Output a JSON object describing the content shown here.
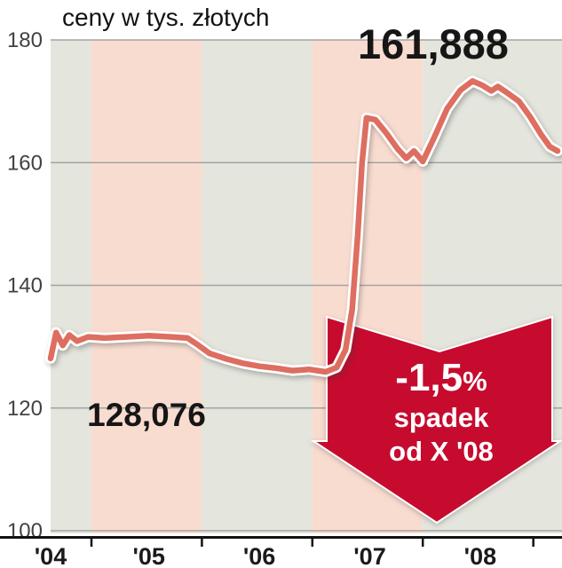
{
  "colors": {
    "line": "#dd6e60",
    "line_casing": "#ffffff",
    "band_gray": "#e4e5dd",
    "band_pink": "#f9dcd0",
    "grid": "#a3a3a3",
    "axis": "#111111",
    "y_tick_label": "#424242",
    "x_tick_label": "#1a1a1a",
    "arrow": "#c60b2e",
    "annotation_text": "#161616"
  },
  "chart_data": {
    "type": "line",
    "title": "ceny w tys. złotych",
    "xlabel": "",
    "ylabel": "ceny w tys. złotych",
    "ylim": [
      100,
      180
    ],
    "yticks": [
      180,
      160,
      140,
      120,
      100
    ],
    "x_domain": [
      2004.11,
      2008.74
    ],
    "xticks": [
      {
        "x": 2004.11,
        "label": "'04"
      },
      {
        "x": 2005,
        "label": "'05"
      },
      {
        "x": 2006,
        "label": "'06"
      },
      {
        "x": 2007,
        "label": "'07"
      },
      {
        "x": 2008,
        "label": "'08"
      }
    ],
    "xtick_marks": [
      2004.48,
      2005.48,
      2006.48,
      2007.48,
      2008.48
    ],
    "bands": [
      {
        "from": 2004.11,
        "to": 2004.48,
        "color": "gray"
      },
      {
        "from": 2004.48,
        "to": 2005.48,
        "color": "pink"
      },
      {
        "from": 2005.48,
        "to": 2006.48,
        "color": "gray"
      },
      {
        "from": 2006.48,
        "to": 2007.48,
        "color": "pink"
      },
      {
        "from": 2007.48,
        "to": 2008.74,
        "color": "gray"
      }
    ],
    "grid": true,
    "legend": false,
    "series": [
      {
        "points": [
          [
            2004.11,
            128.1
          ],
          [
            2004.16,
            132.3
          ],
          [
            2004.22,
            130.2
          ],
          [
            2004.28,
            131.9
          ],
          [
            2004.35,
            130.9
          ],
          [
            2004.45,
            131.6
          ],
          [
            2004.6,
            131.4
          ],
          [
            2004.8,
            131.6
          ],
          [
            2005.0,
            131.8
          ],
          [
            2005.2,
            131.6
          ],
          [
            2005.35,
            131.4
          ],
          [
            2005.45,
            130.2
          ],
          [
            2005.55,
            128.9
          ],
          [
            2005.7,
            128.0
          ],
          [
            2005.85,
            127.3
          ],
          [
            2006.0,
            126.8
          ],
          [
            2006.15,
            126.5
          ],
          [
            2006.3,
            126.1
          ],
          [
            2006.45,
            126.3
          ],
          [
            2006.6,
            125.9
          ],
          [
            2006.7,
            126.6
          ],
          [
            2006.78,
            129.5
          ],
          [
            2006.84,
            136.0
          ],
          [
            2006.89,
            148.0
          ],
          [
            2006.93,
            160.0
          ],
          [
            2006.97,
            167.3
          ],
          [
            2007.05,
            167.0
          ],
          [
            2007.15,
            164.8
          ],
          [
            2007.25,
            162.3
          ],
          [
            2007.33,
            160.7
          ],
          [
            2007.4,
            161.9
          ],
          [
            2007.48,
            160.2
          ],
          [
            2007.58,
            164.0
          ],
          [
            2007.7,
            168.8
          ],
          [
            2007.82,
            171.8
          ],
          [
            2007.93,
            173.3
          ],
          [
            2008.02,
            172.6
          ],
          [
            2008.1,
            171.7
          ],
          [
            2008.16,
            172.4
          ],
          [
            2008.25,
            171.3
          ],
          [
            2008.35,
            170.0
          ],
          [
            2008.45,
            167.5
          ],
          [
            2008.55,
            164.6
          ],
          [
            2008.63,
            162.6
          ],
          [
            2008.7,
            161.9
          ]
        ]
      }
    ],
    "annotations": {
      "peak_label": "161,888",
      "start_label": "128,076",
      "callout": {
        "value": "-1,5",
        "pct": "%",
        "word": "spadek",
        "since": "od X '08"
      }
    }
  }
}
